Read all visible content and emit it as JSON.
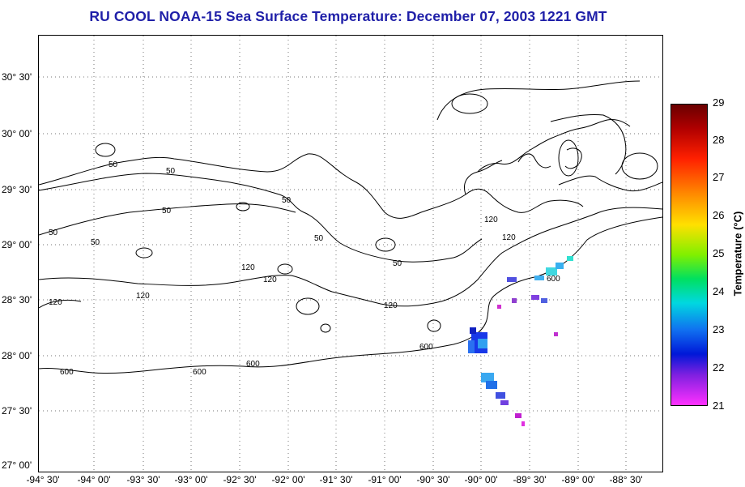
{
  "title": "RU COOL  NOAA-15  Sea Surface Temperature:  December 07, 2003 1221 GMT",
  "lat_labels": [
    "30° 30'",
    "30° 00'",
    "29° 30'",
    "29° 00'",
    "28° 30'",
    "28° 00'",
    "27° 30'",
    "27° 00'"
  ],
  "lon_labels": [
    "-94° 30'",
    "-94° 00'",
    "-93° 30'",
    "-93° 00'",
    "-92° 30'",
    "-92° 00'",
    "-91° 30'",
    "-91° 00'",
    "-90° 30'",
    "-90° 00'",
    "-89° 30'",
    "-89° 00'",
    "-88° 30'"
  ],
  "colorbar": {
    "title": "Temperature (°C)",
    "ticks": [
      "29",
      "28",
      "27",
      "26",
      "25",
      "24",
      "23",
      "22",
      "21"
    ]
  },
  "contour_labels": [
    "50",
    "50",
    "50",
    "50",
    "50",
    "50",
    "50",
    "50",
    "120",
    "120",
    "120",
    "120",
    "120",
    "120",
    "120",
    "600",
    "600",
    "600",
    "600",
    "600"
  ]
}
